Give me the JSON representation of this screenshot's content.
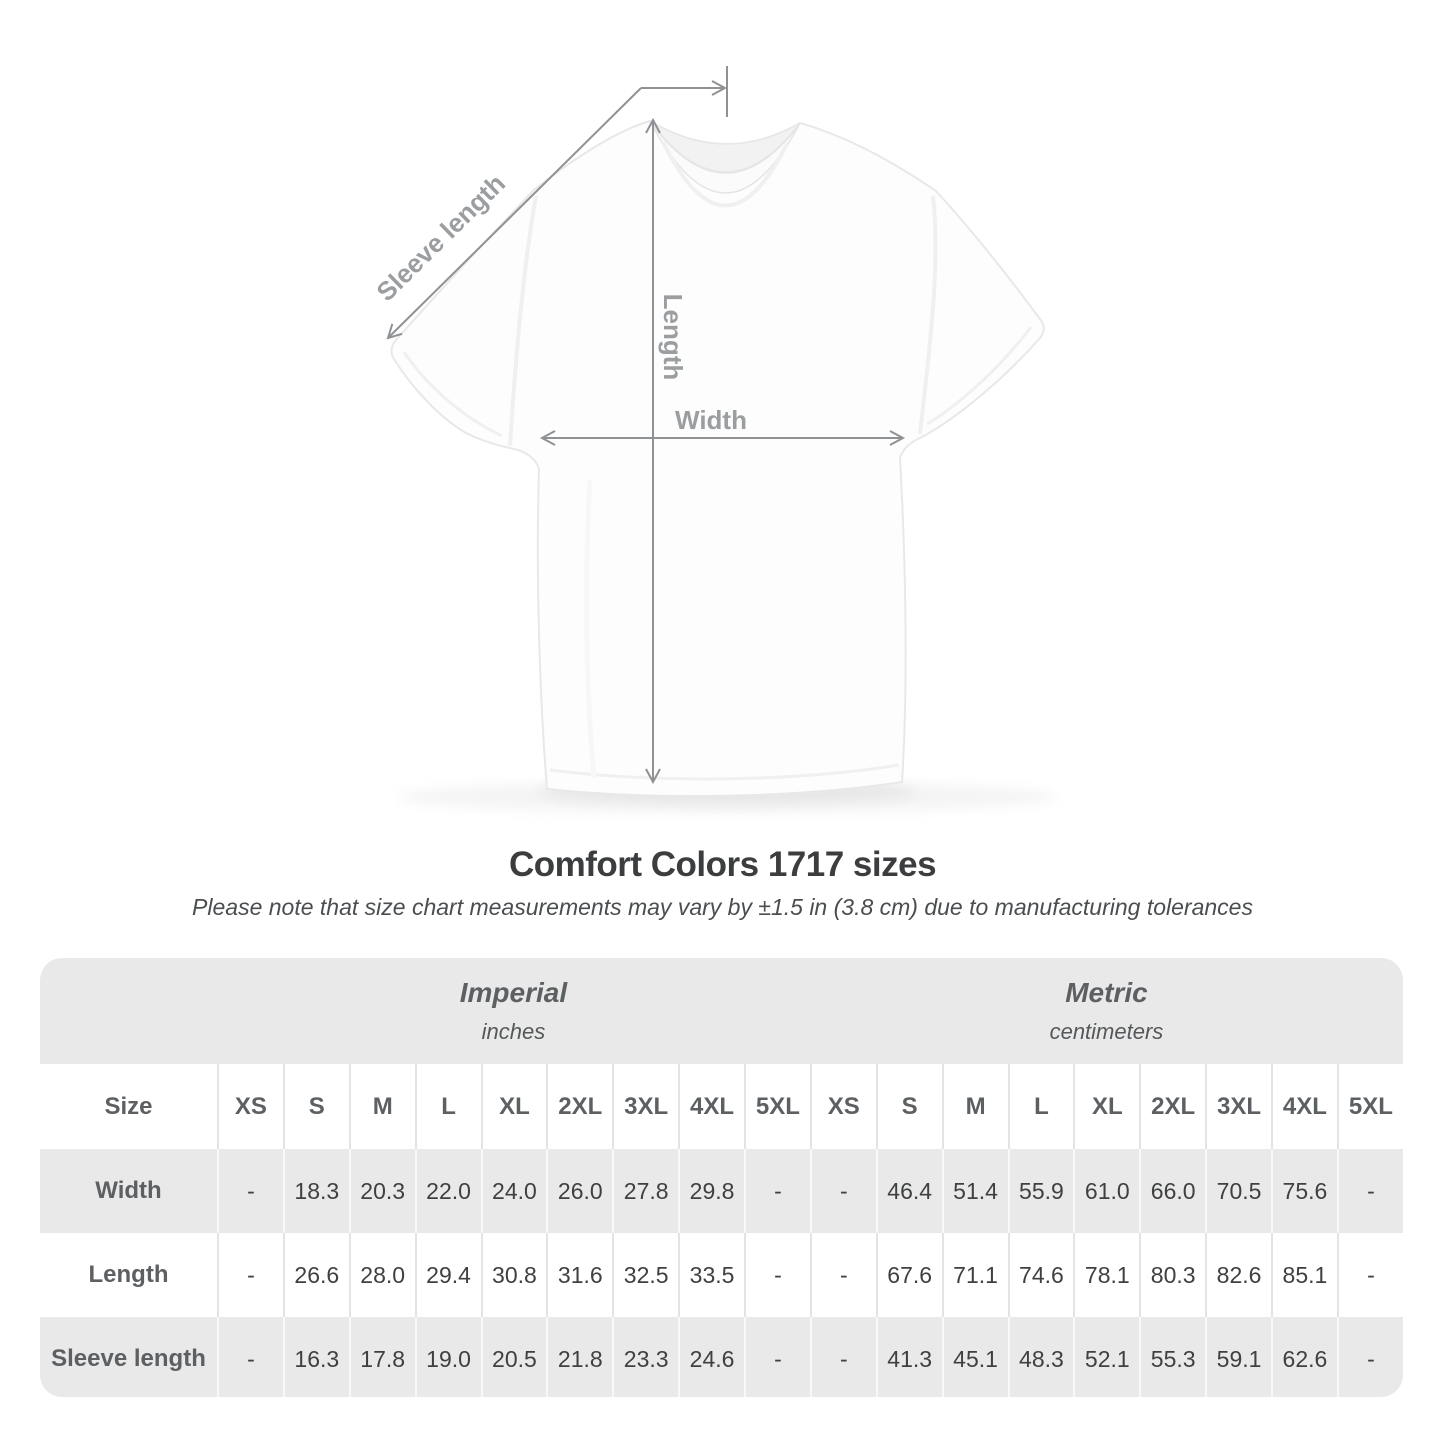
{
  "title": "Comfort Colors 1717 sizes",
  "subtitle": "Please note that size chart measurements may vary by ±1.5 in (3.8 cm) due to manufacturing tolerances",
  "diagram": {
    "labels": {
      "sleeve": "Sleeve length",
      "length": "Length",
      "width": "Width"
    },
    "arrow_color": "#8f9295",
    "label_color": "#9b9ea0"
  },
  "table": {
    "groups": [
      {
        "name": "Imperial",
        "unit": "inches"
      },
      {
        "name": "Metric",
        "unit": "centimeters"
      }
    ],
    "size_label": "Size",
    "sizes": [
      "XS",
      "S",
      "M",
      "L",
      "XL",
      "2XL",
      "3XL",
      "4XL",
      "5XL"
    ],
    "rows": [
      {
        "label": "Width",
        "imperial": [
          "-",
          "18.3",
          "20.3",
          "22.0",
          "24.0",
          "26.0",
          "27.8",
          "29.8",
          "-"
        ],
        "metric": [
          "-",
          "46.4",
          "51.4",
          "55.9",
          "61.0",
          "66.0",
          "70.5",
          "75.6",
          "-"
        ]
      },
      {
        "label": "Length",
        "imperial": [
          "-",
          "26.6",
          "28.0",
          "29.4",
          "30.8",
          "31.6",
          "32.5",
          "33.5",
          "-"
        ],
        "metric": [
          "-",
          "67.6",
          "71.1",
          "74.6",
          "78.1",
          "80.3",
          "82.6",
          "85.1",
          "-"
        ]
      },
      {
        "label": "Sleeve length",
        "imperial": [
          "-",
          "16.3",
          "17.8",
          "19.0",
          "20.5",
          "21.8",
          "23.3",
          "24.6",
          "-"
        ],
        "metric": [
          "-",
          "41.3",
          "45.1",
          "48.3",
          "52.1",
          "55.3",
          "59.1",
          "62.6",
          "-"
        ]
      }
    ],
    "stripe_color": "#e9e9e9",
    "text_color": "#5d6063",
    "value_color": "#3e4042"
  },
  "chart_data": {
    "type": "table",
    "title": "Comfort Colors 1717 sizes",
    "note": "Please note that size chart measurements may vary by ±1.5 in (3.8 cm) due to manufacturing tolerances",
    "unit_groups": [
      "Imperial (inches)",
      "Metric (centimeters)"
    ],
    "columns": [
      "XS",
      "S",
      "M",
      "L",
      "XL",
      "2XL",
      "3XL",
      "4XL",
      "5XL"
    ],
    "rows": [
      {
        "measurement": "Width",
        "imperial_in": [
          null,
          18.3,
          20.3,
          22.0,
          24.0,
          26.0,
          27.8,
          29.8,
          null
        ],
        "metric_cm": [
          null,
          46.4,
          51.4,
          55.9,
          61.0,
          66.0,
          70.5,
          75.6,
          null
        ]
      },
      {
        "measurement": "Length",
        "imperial_in": [
          null,
          26.6,
          28.0,
          29.4,
          30.8,
          31.6,
          32.5,
          33.5,
          null
        ],
        "metric_cm": [
          null,
          67.6,
          71.1,
          74.6,
          78.1,
          80.3,
          82.6,
          85.1,
          null
        ]
      },
      {
        "measurement": "Sleeve length",
        "imperial_in": [
          null,
          16.3,
          17.8,
          19.0,
          20.5,
          21.8,
          23.3,
          24.6,
          null
        ],
        "metric_cm": [
          null,
          41.3,
          45.1,
          48.3,
          52.1,
          55.3,
          59.1,
          62.6,
          null
        ]
      }
    ]
  }
}
